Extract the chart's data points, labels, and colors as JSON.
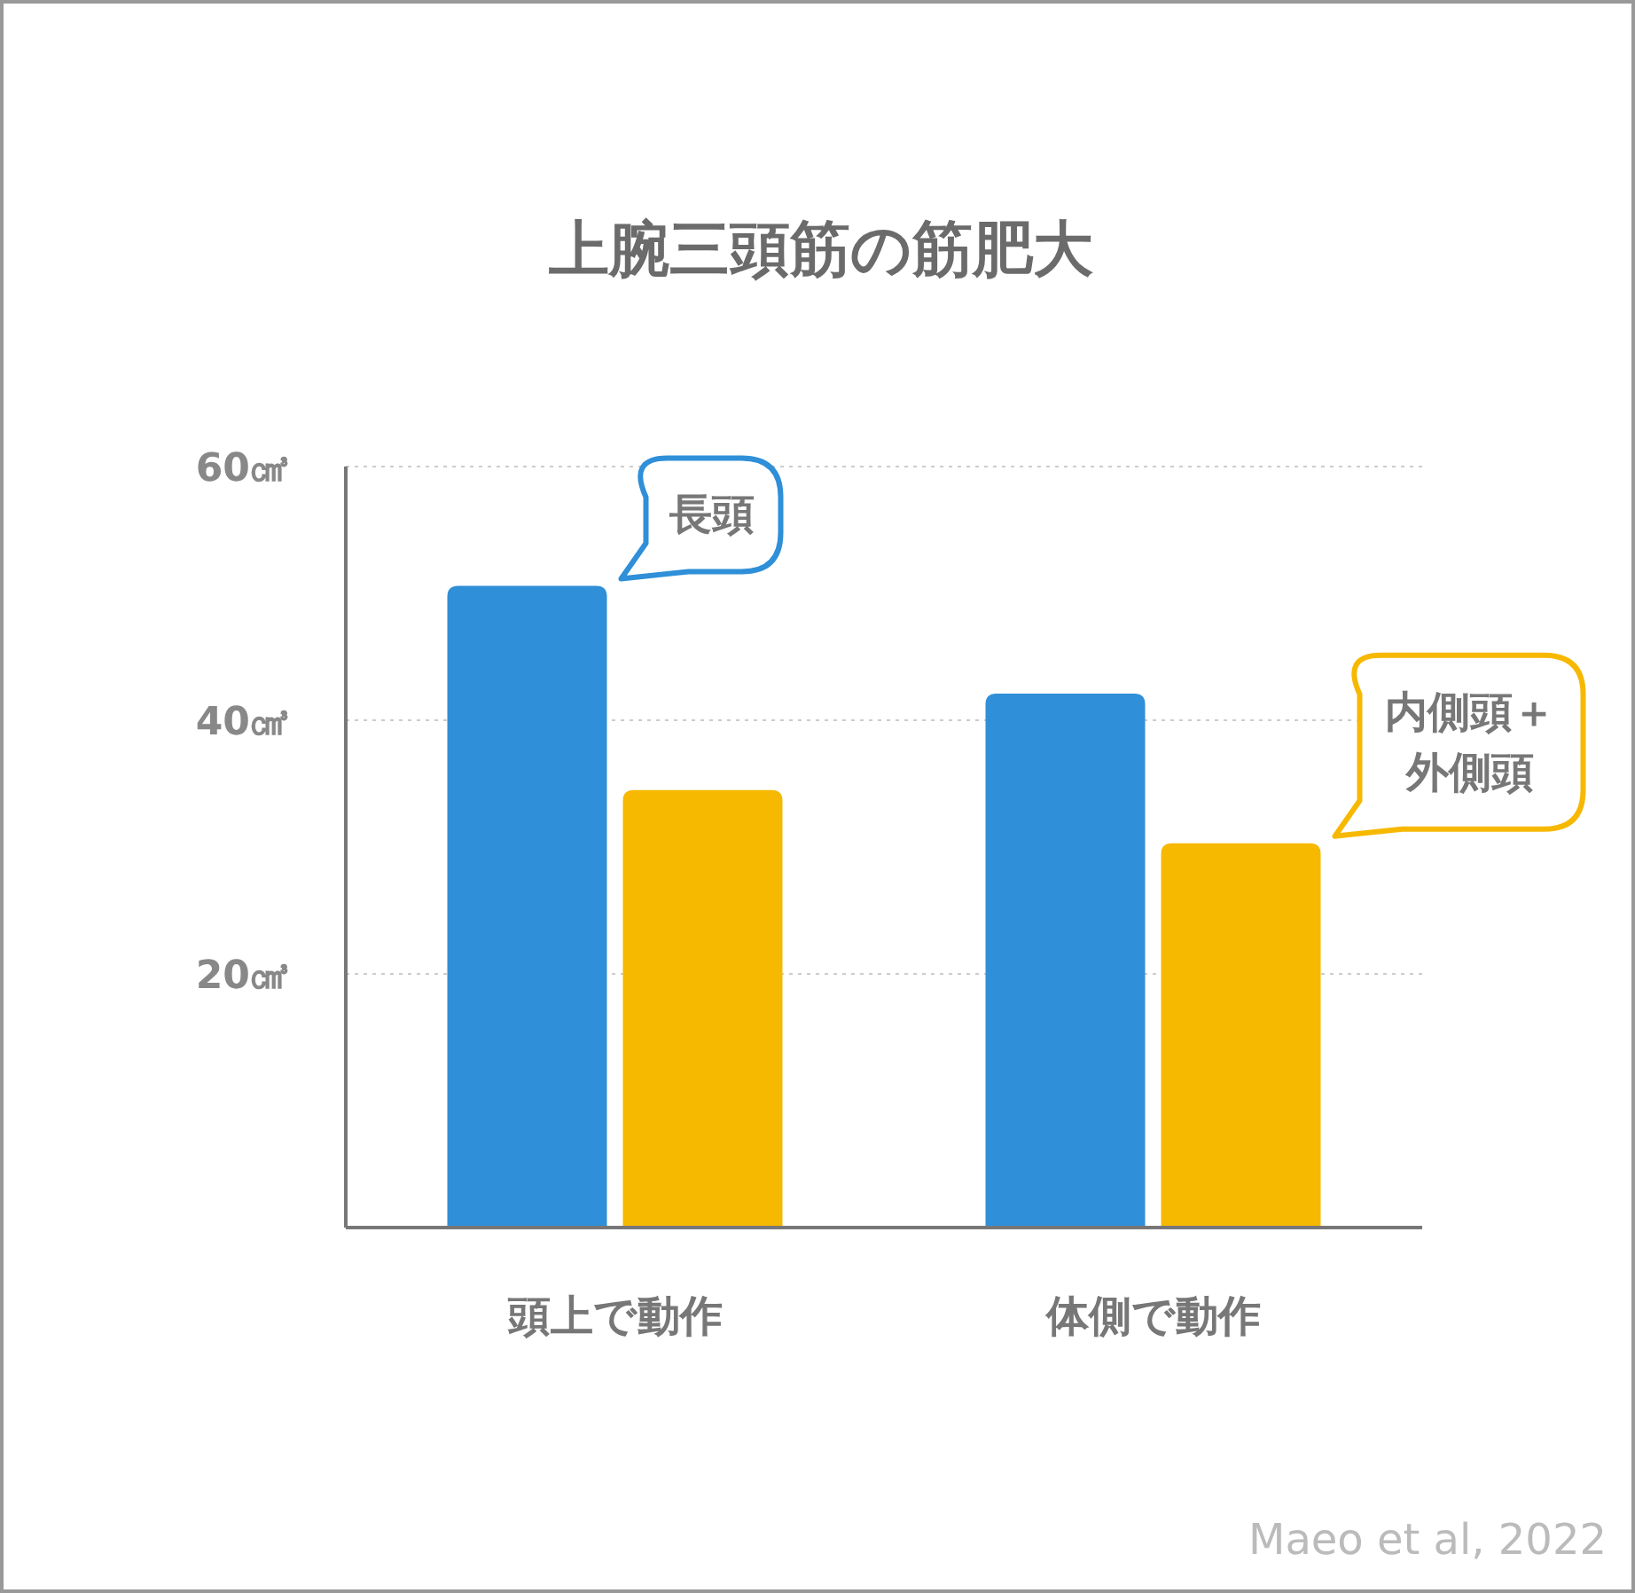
{
  "chart_data": {
    "type": "bar",
    "title": "上腕三頭筋の筋肥大",
    "categories": [
      "頭上で動作",
      "体側で動作"
    ],
    "series": [
      {
        "name": "長頭",
        "color": "#2f8fd8",
        "values": [
          50.6,
          42.1
        ]
      },
      {
        "name": "内側頭＋外側頭",
        "color": "#f7b800",
        "values": [
          34.5,
          30.3
        ]
      }
    ],
    "ylim": [
      0,
      60
    ],
    "yticks": [
      {
        "value": 20,
        "label": "20㎤"
      },
      {
        "value": 40,
        "label": "40㎤"
      },
      {
        "value": 60,
        "label": "60㎤"
      }
    ],
    "grid": "y",
    "annotations": [
      "Maeo et al, 2022"
    ]
  }
}
